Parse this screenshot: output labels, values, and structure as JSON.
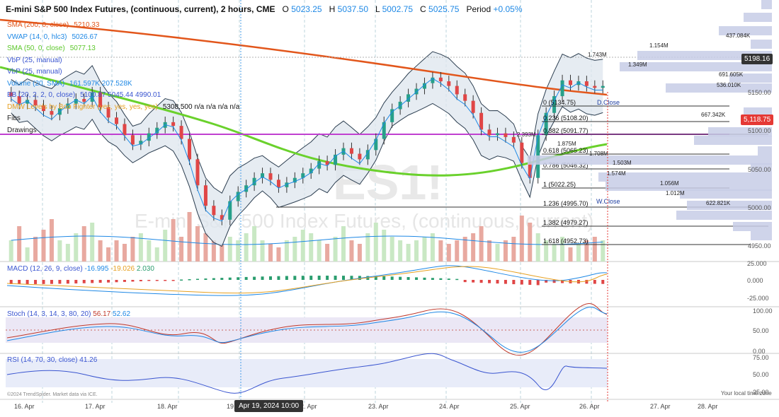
{
  "header": {
    "title": "E-mini S&P 500 Index Futures, (continuous, current), 2 hours, CME",
    "o_label": "O",
    "o": "5023.25",
    "h_label": "H",
    "h": "5037.50",
    "l_label": "L",
    "l": "5002.75",
    "c_label": "C",
    "c": "5025.75",
    "period_label": "Period",
    "period": "+0.05%"
  },
  "indicators": [
    {
      "text": "SMA (200, 0, close)",
      "value": "5210.33",
      "color": "#e2561b"
    },
    {
      "text": "VWAP (14, 0, hlc3)",
      "value": "5026.67",
      "color": "#1e88e5"
    },
    {
      "text": "SMA (50, 0, close)",
      "value": "5077.13",
      "color": "#5cc72a"
    },
    {
      "text": "VbP (25, manual)",
      "value": "",
      "color": "#3a55d0"
    },
    {
      "text": "VbP (25, manual)",
      "value": "",
      "color": "#3a55d0"
    },
    {
      "text": "Volume (20, SMA)",
      "value": "161.597K 207.528K",
      "color": "#1e88e5"
    },
    {
      "text": "BB (20, 2, 2, 0, close)",
      "value": "5100.87 5045.44 4990.01",
      "color": "#3a55d0"
    },
    {
      "text": "DMW Levels by Boo Fighter (yes, yes, yes, yes)",
      "value": "5308.500 n/a n/a n/a n/a",
      "color": "#e6a020"
    },
    {
      "text": "Fibs",
      "value": "",
      "color": "#222"
    },
    {
      "text": "Drawings",
      "value": "",
      "color": "#222"
    }
  ],
  "panes": {
    "macd": {
      "label": "MACD (12, 26, 9, close)",
      "v1": "-16.995",
      "v2": "-19.026",
      "v3": "2.030",
      "ticks": [
        "25.000",
        "0.000",
        "-25.000"
      ]
    },
    "stoch": {
      "label": "Stoch (14, 3, 14, 3, 80, 20)",
      "v1": "56.17",
      "v2": "52.62",
      "ticks": [
        "100.00",
        "50.00",
        "0.00"
      ]
    },
    "rsi": {
      "label": "RSI (14, 70, 30, close)",
      "v1": "41.26",
      "ticks": [
        "75.00",
        "50.00",
        "25.00"
      ]
    }
  },
  "fibs": [
    {
      "label": "0 (5134.75)"
    },
    {
      "label": "0.236 (5108.20)"
    },
    {
      "label": "0.382 (5091.77)"
    },
    {
      "label": "0.618 (5065.23)"
    },
    {
      "label": "0.786 (5046.32)"
    },
    {
      "label": "1 (5022.25)"
    },
    {
      "label": "1.236 (4995.70)"
    },
    {
      "label": "1.382 (4979.27)"
    },
    {
      "label": "1.618 (4952.73)"
    }
  ],
  "closes": {
    "d_close": "D.Close",
    "w_close": "W.Close"
  },
  "vbp": [
    "437.084K",
    "1.154M",
    "1.743M",
    "1.349M",
    "691.605K",
    "536.010K",
    "667.342K",
    "2.393M",
    "1.875M",
    "1.708M",
    "1.503M",
    "1.574M",
    "1.056M",
    "1.012M",
    "622.821K"
  ],
  "price_axis": {
    "ticks": [
      "5150.00",
      "5100.00",
      "5050.00",
      "5000.00",
      "4950.00"
    ],
    "tag_sma": "5198.16",
    "tag_last": "5,118.75"
  },
  "x_axis": {
    "labels": [
      "16. Apr",
      "17. Apr",
      "18. Apr",
      "19.",
      "2. Apr",
      "23. Apr",
      "24. Apr",
      "25. Apr",
      "26. Apr",
      "27. Apr",
      "28. Apr"
    ],
    "tooltip": "Apr 19, 2024 10:00"
  },
  "footer": {
    "copyright": "©2024 TrendSpider. Market data via ICE.",
    "local_time": "Your local time zone"
  },
  "watermark": {
    "symbol": "ES1!",
    "name": "E-mini S&P 500 Index Futures, (continuous, current)"
  },
  "chart_data": {
    "type": "candlestick",
    "title": "E-mini S&P 500 Index Futures, (continuous, current), 2 hours, CME",
    "ylim": [
      4930,
      5210
    ],
    "yticks": [
      5150,
      5100,
      5050,
      5000,
      4950
    ],
    "x_categories": [
      "16. Apr",
      "17. Apr",
      "18. Apr",
      "19. Apr",
      "22. Apr",
      "23. Apr",
      "24. Apr",
      "25. Apr",
      "26. Apr"
    ],
    "close_series": [
      5108,
      5100,
      5104,
      5098,
      5092,
      5088,
      5095,
      5100,
      5105,
      5102,
      5112,
      5096,
      5085,
      5078,
      5066,
      5056,
      5060,
      5068,
      5074,
      5080,
      5076,
      5062,
      5040,
      5012,
      4990,
      4980,
      4975,
      4995,
      5005,
      5012,
      5020,
      5025,
      5018,
      5010,
      5015,
      5020,
      5025,
      5030,
      5038,
      5034,
      5045,
      5052,
      5046,
      5040,
      5050,
      5062,
      5080,
      5094,
      5102,
      5110,
      5116,
      5122,
      5128,
      5124,
      5119,
      5110,
      5103,
      5090,
      5072,
      5066,
      5068,
      5064,
      5058,
      5036,
      5020,
      5066,
      5090,
      5108,
      5125,
      5120,
      5124,
      5119,
      5117,
      5119
    ]
  }
}
